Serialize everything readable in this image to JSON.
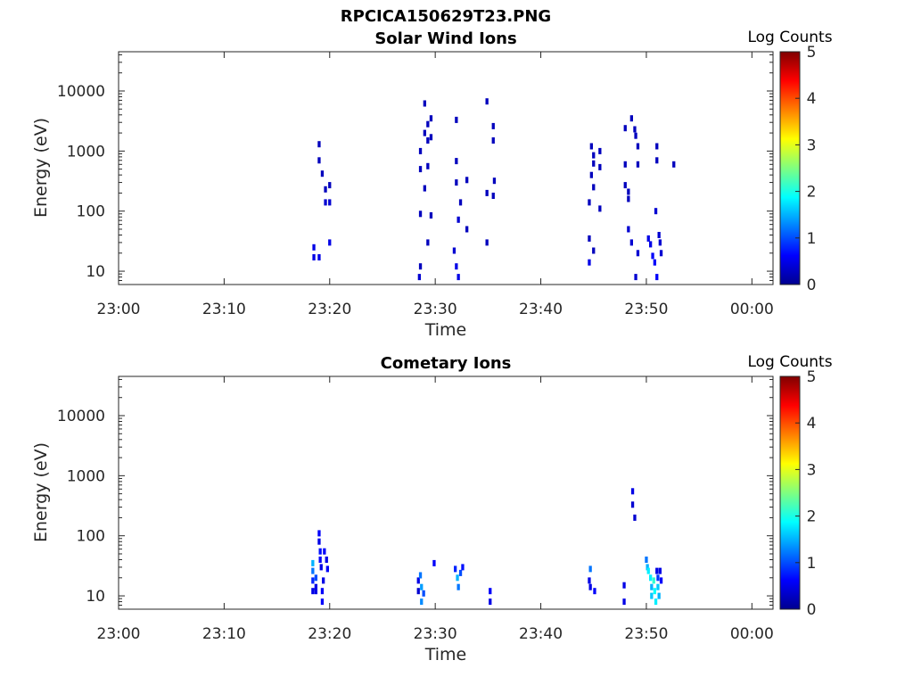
{
  "figure_title": "RPCICA150629T23.PNG",
  "colorbar": {
    "label": "Log Counts",
    "ticks": [
      "0",
      "1",
      "2",
      "3",
      "4",
      "5"
    ],
    "min": 0,
    "max": 5
  },
  "chart_data": [
    {
      "type": "heatmap",
      "title": "Solar Wind Ions",
      "xlabel": "Time",
      "ylabel": "Energy (eV)",
      "x_unit": "minutes after 23:00",
      "xlim": [
        0,
        62
      ],
      "ylim": [
        6,
        45000
      ],
      "y_scale": "log",
      "x_tick_labels": [
        "23:00",
        "23:10",
        "23:20",
        "23:30",
        "23:40",
        "23:50",
        "00:00"
      ],
      "y_tick_labels": [
        "10",
        "100",
        "1000",
        "10000"
      ],
      "cells": [
        [
          18.5,
          25,
          0.5
        ],
        [
          18.5,
          17,
          0.5
        ],
        [
          19.0,
          17,
          0.5
        ],
        [
          19.0,
          1300,
          0.3
        ],
        [
          19.0,
          700,
          0.3
        ],
        [
          19.3,
          420,
          0.3
        ],
        [
          19.6,
          230,
          0.3
        ],
        [
          19.6,
          140,
          0.4
        ],
        [
          20.0,
          270,
          0.3
        ],
        [
          20.0,
          140,
          0.4
        ],
        [
          20.0,
          30,
          0.5
        ],
        [
          28.5,
          8,
          0.4
        ],
        [
          28.6,
          12,
          0.3
        ],
        [
          28.6,
          90,
          0.3
        ],
        [
          28.6,
          1000,
          0.3
        ],
        [
          28.6,
          500,
          0.3
        ],
        [
          29.0,
          6200,
          0.3
        ],
        [
          29.0,
          2000,
          0.3
        ],
        [
          29.0,
          240,
          0.3
        ],
        [
          29.3,
          2800,
          0.3
        ],
        [
          29.3,
          1500,
          0.3
        ],
        [
          29.3,
          560,
          0.3
        ],
        [
          29.3,
          30,
          0.3
        ],
        [
          29.6,
          3500,
          0.3
        ],
        [
          29.6,
          1700,
          0.3
        ],
        [
          29.6,
          85,
          0.3
        ],
        [
          31.8,
          22,
          0.4
        ],
        [
          32.0,
          12,
          0.5
        ],
        [
          32.0,
          680,
          0.3
        ],
        [
          32.0,
          300,
          0.3
        ],
        [
          32.0,
          3300,
          0.3
        ],
        [
          32.2,
          8,
          0.5
        ],
        [
          32.2,
          72,
          0.4
        ],
        [
          32.4,
          140,
          0.3
        ],
        [
          33.0,
          330,
          0.3
        ],
        [
          33.0,
          50,
          0.3
        ],
        [
          34.9,
          6700,
          0.3
        ],
        [
          34.9,
          200,
          0.3
        ],
        [
          34.9,
          30,
          0.3
        ],
        [
          35.5,
          2600,
          0.3
        ],
        [
          35.5,
          1500,
          0.3
        ],
        [
          35.5,
          180,
          0.3
        ],
        [
          35.6,
          320,
          0.3
        ],
        [
          44.6,
          14,
          0.5
        ],
        [
          44.6,
          35,
          0.3
        ],
        [
          44.6,
          140,
          0.3
        ],
        [
          44.8,
          400,
          0.3
        ],
        [
          44.8,
          1200,
          0.3
        ],
        [
          45.0,
          22,
          0.3
        ],
        [
          45.0,
          850,
          0.3
        ],
        [
          45.0,
          620,
          0.3
        ],
        [
          45.0,
          250,
          0.3
        ],
        [
          45.6,
          1000,
          0.3
        ],
        [
          45.6,
          540,
          0.3
        ],
        [
          45.6,
          110,
          0.3
        ],
        [
          48.0,
          2400,
          0.3
        ],
        [
          48.0,
          600,
          0.3
        ],
        [
          48.0,
          270,
          0.3
        ],
        [
          48.3,
          210,
          0.3
        ],
        [
          48.3,
          160,
          0.3
        ],
        [
          48.3,
          50,
          0.4
        ],
        [
          48.6,
          3500,
          0.3
        ],
        [
          48.6,
          30,
          0.4
        ],
        [
          48.9,
          2300,
          0.3
        ],
        [
          49.0,
          1800,
          0.3
        ],
        [
          49.0,
          8,
          0.4
        ],
        [
          49.2,
          20,
          0.4
        ],
        [
          49.2,
          600,
          0.3
        ],
        [
          49.2,
          1200,
          0.3
        ],
        [
          50.2,
          35,
          0.5
        ],
        [
          50.4,
          28,
          0.5
        ],
        [
          50.6,
          18,
          0.6
        ],
        [
          50.8,
          14,
          0.6
        ],
        [
          51.0,
          8,
          0.6
        ],
        [
          50.9,
          100,
          0.4
        ],
        [
          51.0,
          1200,
          0.3
        ],
        [
          51.0,
          700,
          0.3
        ],
        [
          51.2,
          40,
          0.4
        ],
        [
          51.3,
          30,
          0.4
        ],
        [
          51.4,
          20,
          0.4
        ],
        [
          52.6,
          600,
          0.3
        ]
      ]
    },
    {
      "type": "heatmap",
      "title": "Cometary Ions",
      "xlabel": "Time",
      "ylabel": "Energy (eV)",
      "x_unit": "minutes after 23:00",
      "xlim": [
        0,
        62
      ],
      "ylim": [
        6,
        45000
      ],
      "y_scale": "log",
      "x_tick_labels": [
        "23:00",
        "23:10",
        "23:20",
        "23:30",
        "23:40",
        "23:50",
        "00:00"
      ],
      "y_tick_labels": [
        "10",
        "100",
        "1000",
        "10000"
      ],
      "cells": [
        [
          18.4,
          35,
          1.5
        ],
        [
          18.4,
          26,
          1.2
        ],
        [
          18.4,
          18,
          0.8
        ],
        [
          18.4,
          12,
          0.5
        ],
        [
          18.7,
          20,
          1.0
        ],
        [
          18.7,
          14,
          0.5
        ],
        [
          18.7,
          12,
          0.5
        ],
        [
          19.0,
          110,
          0.6
        ],
        [
          19.0,
          80,
          0.5
        ],
        [
          19.1,
          55,
          0.7
        ],
        [
          19.1,
          40,
          0.6
        ],
        [
          19.2,
          30,
          0.5
        ],
        [
          19.3,
          12,
          0.6
        ],
        [
          19.3,
          8,
          0.6
        ],
        [
          19.4,
          18,
          0.5
        ],
        [
          19.5,
          55,
          0.6
        ],
        [
          19.7,
          40,
          0.5
        ],
        [
          19.8,
          28,
          0.6
        ],
        [
          28.4,
          18,
          0.5
        ],
        [
          28.4,
          12,
          0.4
        ],
        [
          28.6,
          22,
          1.2
        ],
        [
          28.7,
          14,
          1.4
        ],
        [
          28.7,
          8,
          1.3
        ],
        [
          28.9,
          11,
          1.0
        ],
        [
          29.9,
          35,
          0.6
        ],
        [
          31.9,
          28,
          0.8
        ],
        [
          32.1,
          20,
          1.5
        ],
        [
          32.2,
          14,
          1.2
        ],
        [
          32.4,
          24,
          1.0
        ],
        [
          32.6,
          30,
          0.7
        ],
        [
          35.2,
          12,
          0.6
        ],
        [
          35.2,
          8,
          0.5
        ],
        [
          44.6,
          18,
          0.5
        ],
        [
          44.7,
          28,
          1.2
        ],
        [
          44.7,
          14,
          0.5
        ],
        [
          45.1,
          12,
          0.6
        ],
        [
          47.9,
          15,
          0.5
        ],
        [
          47.9,
          8,
          0.5
        ],
        [
          48.7,
          550,
          0.5
        ],
        [
          48.7,
          330,
          0.4
        ],
        [
          48.9,
          200,
          0.4
        ],
        [
          50.0,
          40,
          1.2
        ],
        [
          50.1,
          30,
          1.5
        ],
        [
          50.2,
          26,
          1.8
        ],
        [
          50.4,
          20,
          1.8
        ],
        [
          50.5,
          14,
          1.5
        ],
        [
          50.5,
          10,
          1.6
        ],
        [
          50.7,
          18,
          2.1
        ],
        [
          50.8,
          12,
          1.9
        ],
        [
          50.9,
          8,
          1.8
        ],
        [
          51.0,
          26,
          0.5
        ],
        [
          51.1,
          20,
          0.9
        ],
        [
          51.1,
          14,
          1.6
        ],
        [
          51.2,
          10,
          1.5
        ],
        [
          51.3,
          26,
          0.5
        ],
        [
          51.4,
          18,
          0.6
        ]
      ]
    }
  ]
}
